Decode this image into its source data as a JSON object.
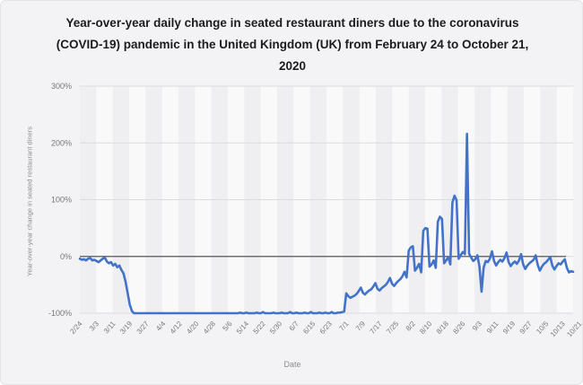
{
  "title": "Year-over-year daily change in seated restaurant diners due to the coronavirus (COVID-19) pandemic in the United Kingdom (UK) from February 24 to October 21, 2020",
  "colors": {
    "line": "#4273c8",
    "background": "#f3f3f5",
    "plot_base": "#f9f9fa",
    "band": "#efeff2",
    "gridline": "#dcdcde",
    "zero_line": "#58585a",
    "title_text": "#1c1c1e",
    "tick_text": "#77777b"
  },
  "chart_data": {
    "type": "line",
    "title": "Year-over-year daily change in seated restaurant diners due to the coronavirus (COVID-19) pandemic in the United Kingdom (UK) from February 24 to October 21, 2020",
    "xlabel": "Date",
    "ylabel": "Year-over-year change in seated restaurant diners",
    "ylim": [
      -100,
      300
    ],
    "yticks": [
      300,
      200,
      100,
      0,
      -100
    ],
    "ytick_labels": [
      "300%",
      "200%",
      "100%",
      "0%",
      "-100%"
    ],
    "x_start_date": "2/24",
    "x_end_date": "10/21",
    "x_tick_interval_days": 8,
    "x_tick_labels": [
      "2/24",
      "3/3",
      "3/11",
      "3/19",
      "3/27",
      "4/4",
      "4/12",
      "4/20",
      "4/28",
      "5/6",
      "5/14",
      "5/22",
      "5/30",
      "6/7",
      "6/15",
      "6/23",
      "7/1",
      "7/9",
      "7/17",
      "7/25",
      "8/2",
      "8/10",
      "8/18",
      "8/26",
      "9/3",
      "9/11",
      "9/19",
      "9/27",
      "10/5",
      "10/13",
      "10/21"
    ],
    "grid": true,
    "zero_line": true,
    "legend_position": "none",
    "alternating_bands": true,
    "series": [
      {
        "name": "Year-over-year change in seated restaurant diners (%)",
        "color": "#4273c8",
        "values": [
          -4,
          -6,
          -5,
          -7,
          -4,
          -3,
          -7,
          -6,
          -8,
          -10,
          -7,
          -4,
          -2,
          -9,
          -12,
          -10,
          -16,
          -13,
          -19,
          -16,
          -24,
          -30,
          -45,
          -65,
          -85,
          -96,
          -100,
          -100,
          -100,
          -100,
          -100,
          -100,
          -100,
          -100,
          -100,
          -100,
          -100,
          -100,
          -100,
          -100,
          -100,
          -100,
          -100,
          -100,
          -100,
          -100,
          -100,
          -100,
          -100,
          -100,
          -100,
          -100,
          -100,
          -100,
          -100,
          -100,
          -100,
          -100,
          -100,
          -100,
          -100,
          -100,
          -100,
          -100,
          -100,
          -100,
          -100,
          -100,
          -100,
          -100,
          -100,
          -100,
          -100,
          -100,
          -100,
          -100,
          -100,
          -99,
          -100,
          -100,
          -99,
          -100,
          -100,
          -100,
          -100,
          -99,
          -100,
          -100,
          -98,
          -100,
          -100,
          -100,
          -100,
          -99,
          -100,
          -100,
          -100,
          -99,
          -100,
          -100,
          -100,
          -98,
          -100,
          -100,
          -99,
          -100,
          -100,
          -100,
          -99,
          -100,
          -100,
          -98,
          -100,
          -100,
          -100,
          -99,
          -100,
          -100,
          -99,
          -100,
          -100,
          -98,
          -100,
          -100,
          -99,
          -99,
          -98,
          -97,
          -65,
          -70,
          -73,
          -71,
          -69,
          -66,
          -61,
          -55,
          -64,
          -67,
          -63,
          -60,
          -58,
          -53,
          -47,
          -57,
          -60,
          -56,
          -53,
          -50,
          -45,
          -38,
          -48,
          -52,
          -47,
          -43,
          -40,
          -35,
          -27,
          -37,
          10,
          16,
          18,
          -25,
          -20,
          -13,
          -28,
          45,
          50,
          49,
          -18,
          -14,
          -7,
          -20,
          61,
          70,
          66,
          -12,
          -7,
          -1,
          -14,
          95,
          107,
          99,
          -4,
          2,
          8,
          4,
          216,
          5,
          -2,
          -8,
          -5,
          2,
          -18,
          -62,
          -20,
          -8,
          -10,
          -4,
          9,
          -8,
          -16,
          -10,
          -6,
          -9,
          -3,
          7,
          -10,
          -17,
          -12,
          -9,
          -13,
          -7,
          4,
          -14,
          -22,
          -16,
          -12,
          -9,
          -6,
          2,
          -15,
          -25,
          -18,
          -13,
          -10,
          -6,
          -1,
          -16,
          -23,
          -17,
          -12,
          -14,
          -9,
          -5,
          -20,
          -28,
          -26,
          -27
        ]
      }
    ]
  }
}
